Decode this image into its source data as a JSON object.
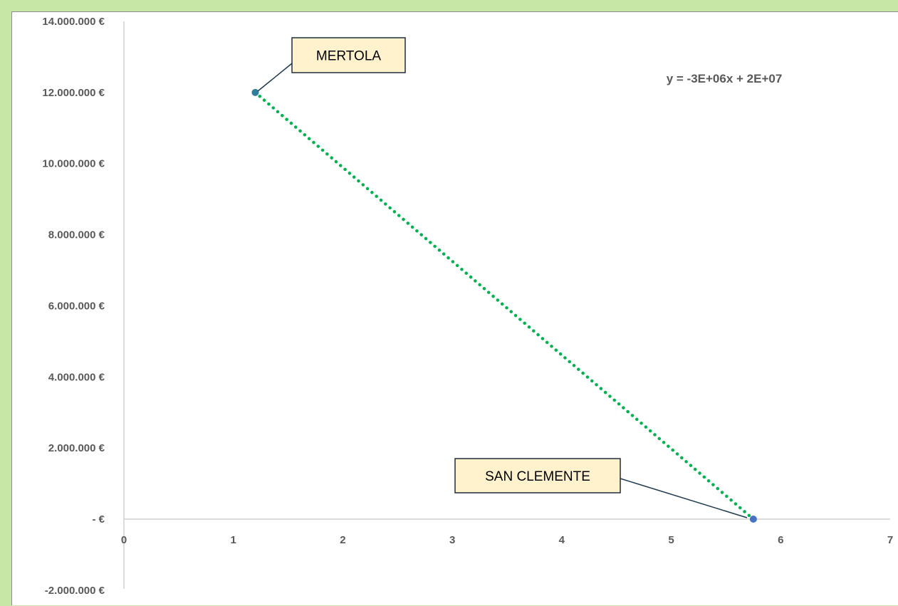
{
  "chart_data": {
    "type": "scatter",
    "title": "",
    "xlabel": "",
    "ylabel": "",
    "xlim": [
      0,
      7
    ],
    "ylim": [
      -2000000,
      14000000
    ],
    "x_ticks": [
      0,
      1,
      2,
      3,
      4,
      5,
      6,
      7
    ],
    "x_tick_labels": [
      "0",
      "1",
      "2",
      "3",
      "4",
      "5",
      "6",
      "7"
    ],
    "y_ticks": [
      -2000000,
      0,
      2000000,
      4000000,
      6000000,
      8000000,
      10000000,
      12000000,
      14000000
    ],
    "y_tick_labels": [
      "-2.000.000 €",
      "-  €",
      "2.000.000 €",
      "4.000.000 €",
      "6.000.000 €",
      "8.000.000 €",
      "10.000.000 €",
      "12.000.000 €",
      "14.000.000 €"
    ],
    "grid": false,
    "series": [
      {
        "points": [
          {
            "x": 1.2,
            "y": 12000000,
            "label": "MERTOLA",
            "color": "#2e7d9a"
          },
          {
            "x": 5.75,
            "y": 0,
            "label": "SAN CLEMENTE",
            "color": "#4472c4"
          }
        ]
      }
    ],
    "trendline": {
      "type": "linear",
      "color": "#00b050",
      "style": "dotted",
      "equation": "y = -3E+06x + 2E+07",
      "from": {
        "x": 1.2,
        "y": 12000000
      },
      "to": {
        "x": 5.75,
        "y": 0
      }
    },
    "colors": {
      "background": "#c6e7a6",
      "plot_background": "#ffffff",
      "callout_fill": "#fff2cc",
      "tick_text": "#595959"
    }
  }
}
